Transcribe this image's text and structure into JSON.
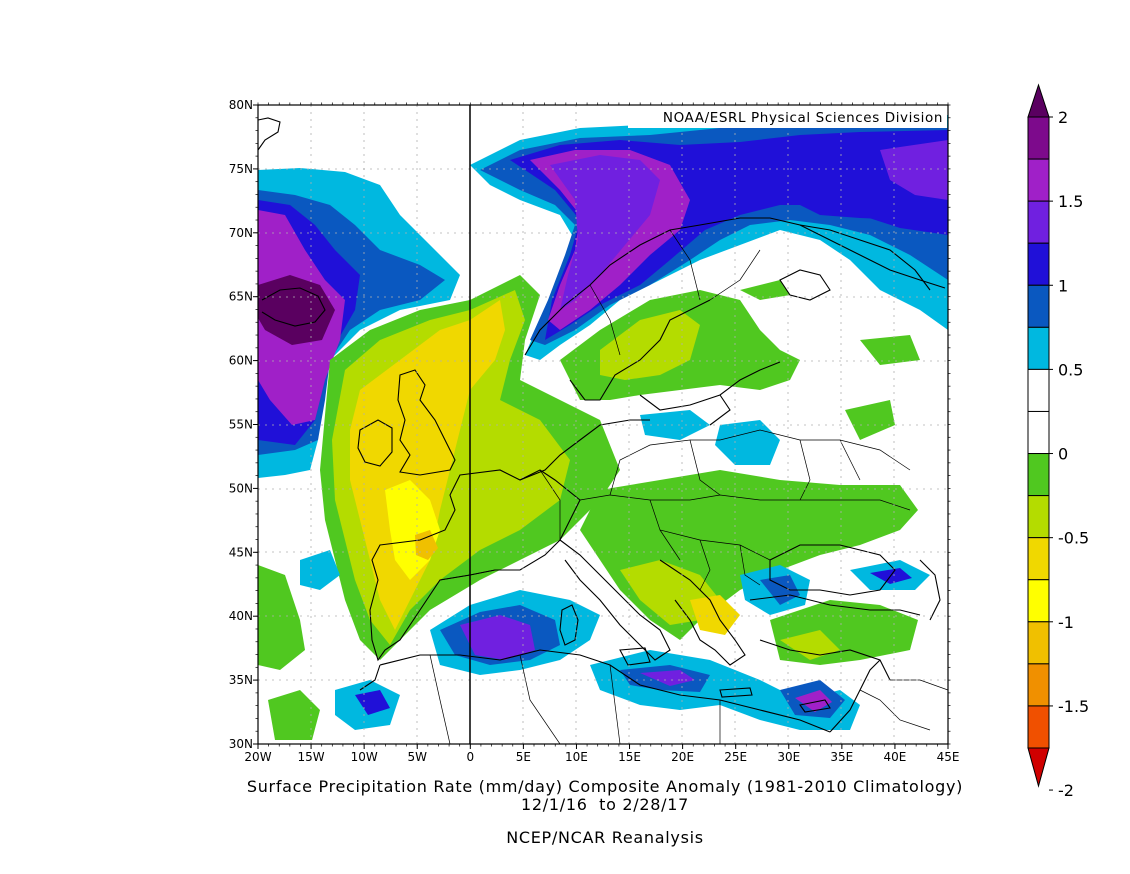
{
  "map": {
    "credit": "NOAA/ESRL Physical Sciences Division",
    "lat_labels": [
      "80N",
      "75N",
      "70N",
      "65N",
      "60N",
      "55N",
      "50N",
      "45N",
      "40N",
      "35N",
      "30N"
    ],
    "lon_labels": [
      "20W",
      "15W",
      "10W",
      "5W",
      "0",
      "5E",
      "10E",
      "15E",
      "20E",
      "25E",
      "30E",
      "35E",
      "40E",
      "45E"
    ],
    "extent": {
      "lon": [
        -20,
        45
      ],
      "lat": [
        30,
        80
      ]
    }
  },
  "caption": {
    "line1": "Surface Precipitation Rate (mm/day) Composite Anomaly (1981-2010 Climatology)",
    "line2": "12/1/16  to 2/28/17",
    "line3": "NCEP/NCAR Reanalysis"
  },
  "colorbar": {
    "labels": [
      "2",
      "1.5",
      "1",
      "0.5",
      "0",
      "-0.5",
      "-1",
      "-1.5",
      "-2"
    ],
    "colors_top_to_bottom": [
      "#5a0060",
      "#7d0a8c",
      "#a020c8",
      "#7020e0",
      "#2010d8",
      "#0a58c0",
      "#00b8e0",
      "#ffffff",
      "#ffffff",
      "#50c820",
      "#b4dc00",
      "#f0d800",
      "#ffff00",
      "#f0c000",
      "#f09000",
      "#f05000",
      "#d00000"
    ]
  },
  "colors": {
    "light_blue": "#00b8e0",
    "blue": "#0a58c0",
    "dark_blue": "#2010d8",
    "violet": "#7020e0",
    "purple": "#a020c8",
    "dark_purple": "#5a0060",
    "green": "#50c820",
    "yellow_green": "#b4dc00",
    "gold": "#f0d800",
    "yellow": "#ffff00",
    "orange": "#f0c000"
  }
}
